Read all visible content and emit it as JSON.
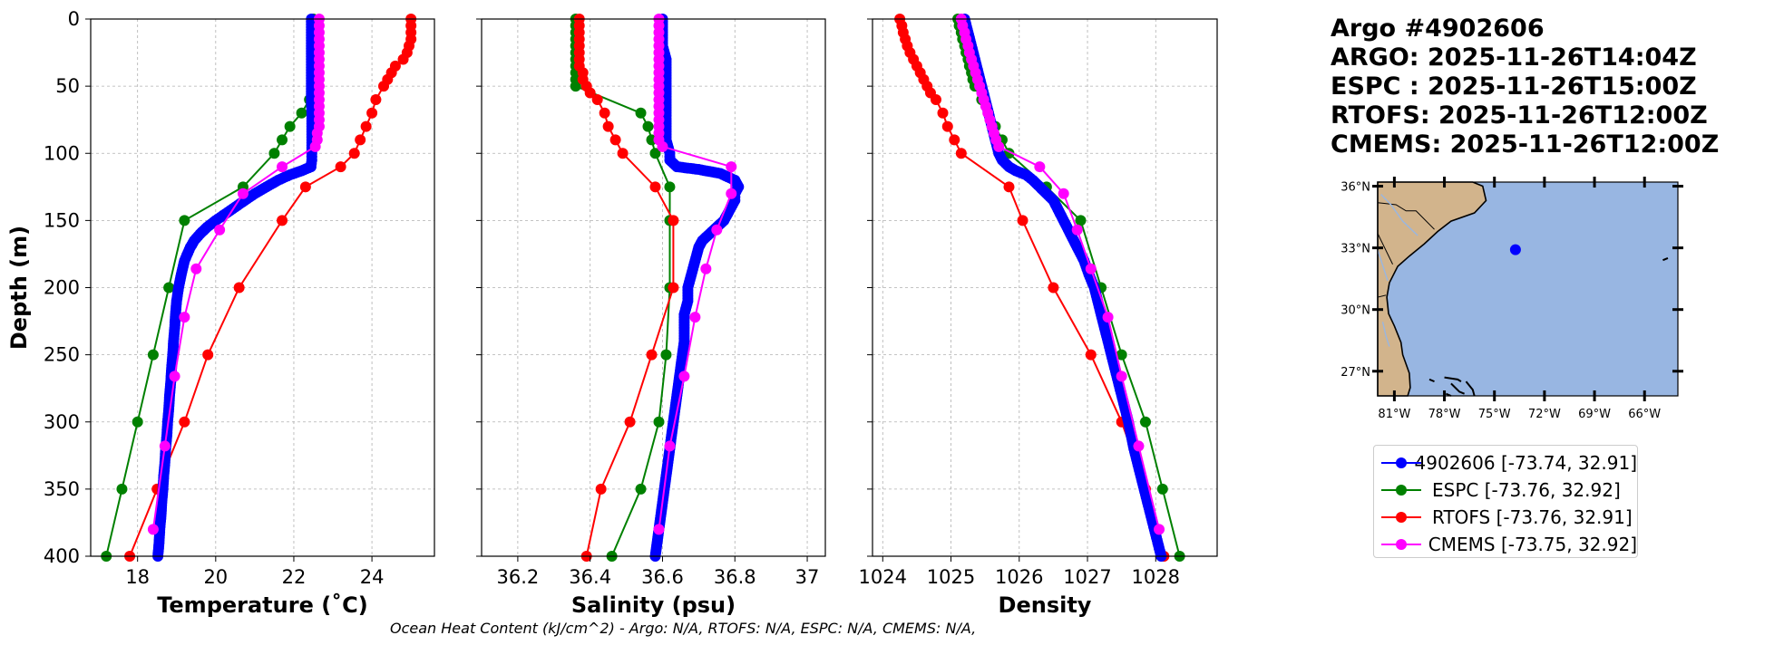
{
  "info": {
    "title": "Argo #4902606",
    "argo_time": "ARGO: 2025-11-26T14:04Z",
    "espc_time": "ESPC : 2025-11-26T15:00Z",
    "rtofs_time": "RTOFS: 2025-11-26T12:00Z",
    "cmems_time": "CMEMS: 2025-11-26T12:00Z"
  },
  "footer": "Ocean Heat Content (kJ/cm^2) - Argo: N/A,  RTOFS: N/A,  ESPC: N/A,  CMEMS: N/A,",
  "colors": {
    "argo": "#0000ff",
    "espc": "#008000",
    "rtofs": "#ff0000",
    "cmems": "#ff00ff",
    "ocean": "#98b6e2",
    "land": "#d2b48c",
    "grid": "#b0b0b0"
  },
  "legend": [
    {
      "label": "4902606 [-73.74, 32.91]",
      "color": "#0000ff"
    },
    {
      "label": "ESPC [-73.76, 32.92]",
      "color": "#008000"
    },
    {
      "label": "RTOFS [-73.76, 32.91]",
      "color": "#ff0000"
    },
    {
      "label": "CMEMS [-73.75, 32.92]",
      "color": "#ff00ff"
    }
  ],
  "chart_data": [
    {
      "type": "line",
      "id": "temperature",
      "title": "",
      "xlabel": "Temperature (˚C)",
      "ylabel": "Depth (m)",
      "xlim": [
        16.8,
        25.6
      ],
      "ylim": [
        400,
        0
      ],
      "xticks": [
        18,
        20,
        22,
        24
      ],
      "yticks": [
        0,
        50,
        100,
        150,
        200,
        250,
        300,
        350,
        400
      ],
      "grid": true,
      "series": [
        {
          "name": "4902606",
          "depth": [
            0,
            10,
            20,
            30,
            40,
            50,
            60,
            70,
            80,
            90,
            100,
            105,
            110,
            113,
            116,
            120,
            125,
            130,
            135,
            140,
            145,
            150,
            155,
            160,
            165,
            170,
            180,
            190,
            200,
            210,
            220,
            230,
            240,
            250,
            260,
            270,
            280,
            290,
            300,
            310,
            320,
            330,
            340,
            350,
            360,
            370,
            380,
            390,
            400
          ],
          "values": [
            22.45,
            22.45,
            22.45,
            22.45,
            22.45,
            22.45,
            22.45,
            22.46,
            22.46,
            22.46,
            22.46,
            22.46,
            22.44,
            22.2,
            21.9,
            21.6,
            21.3,
            21.0,
            20.75,
            20.5,
            20.25,
            20.0,
            19.78,
            19.6,
            19.45,
            19.35,
            19.2,
            19.12,
            19.05,
            19.0,
            18.97,
            18.95,
            18.92,
            18.9,
            18.87,
            18.85,
            18.82,
            18.8,
            18.77,
            18.75,
            18.72,
            18.7,
            18.67,
            18.65,
            18.62,
            18.6,
            18.57,
            18.55,
            18.52
          ]
        },
        {
          "name": "ESPC",
          "depth": [
            0,
            5,
            10,
            15,
            20,
            25,
            30,
            35,
            40,
            45,
            50,
            60,
            70,
            80,
            90,
            100,
            125,
            150,
            200,
            250,
            300,
            350,
            400
          ],
          "values": [
            22.5,
            22.5,
            22.5,
            22.5,
            22.5,
            22.5,
            22.5,
            22.5,
            22.5,
            22.5,
            22.5,
            22.4,
            22.2,
            21.9,
            21.7,
            21.5,
            20.7,
            19.2,
            18.8,
            18.4,
            18.0,
            17.6,
            17.2
          ]
        },
        {
          "name": "RTOFS",
          "depth": [
            0,
            5,
            10,
            15,
            20,
            25,
            30,
            35,
            40,
            45,
            50,
            60,
            70,
            80,
            90,
            100,
            110,
            125,
            150,
            200,
            250,
            300,
            350,
            400
          ],
          "values": [
            25.0,
            25.0,
            25.0,
            25.0,
            24.95,
            24.9,
            24.8,
            24.6,
            24.5,
            24.4,
            24.3,
            24.1,
            24.0,
            23.85,
            23.7,
            23.55,
            23.2,
            22.3,
            21.7,
            20.6,
            19.8,
            19.2,
            18.5,
            17.8
          ]
        },
        {
          "name": "CMEMS",
          "depth": [
            0,
            5,
            10,
            15,
            20,
            25,
            30,
            35,
            40,
            45,
            50,
            55,
            60,
            65,
            70,
            75,
            80,
            85,
            90,
            95,
            110,
            130,
            157,
            186,
            222,
            266,
            318,
            380
          ],
          "values": [
            22.65,
            22.65,
            22.65,
            22.65,
            22.65,
            22.65,
            22.65,
            22.65,
            22.65,
            22.65,
            22.65,
            22.65,
            22.65,
            22.65,
            22.65,
            22.65,
            22.65,
            22.6,
            22.6,
            22.55,
            21.7,
            20.7,
            20.1,
            19.5,
            19.2,
            18.95,
            18.7,
            18.4
          ]
        }
      ]
    },
    {
      "type": "line",
      "id": "salinity",
      "title": "",
      "xlabel": "Salinity (psu)",
      "ylabel": "",
      "xlim": [
        36.1,
        37.05
      ],
      "ylim": [
        400,
        0
      ],
      "xticks": [
        36.2,
        36.4,
        36.6,
        36.8,
        37.0
      ],
      "yticks": [
        0,
        50,
        100,
        150,
        200,
        250,
        300,
        350,
        400
      ],
      "grid": true,
      "series": [
        {
          "name": "4902606",
          "depth": [
            0,
            10,
            20,
            30,
            40,
            50,
            60,
            70,
            80,
            90,
            100,
            105,
            110,
            112,
            115,
            120,
            125,
            130,
            135,
            140,
            145,
            150,
            155,
            160,
            165,
            170,
            180,
            190,
            200,
            210,
            220,
            240,
            260,
            280,
            300,
            320,
            340,
            360,
            380,
            400
          ],
          "values": [
            36.6,
            36.6,
            36.6,
            36.61,
            36.61,
            36.61,
            36.61,
            36.61,
            36.61,
            36.61,
            36.62,
            36.62,
            36.64,
            36.7,
            36.76,
            36.8,
            36.81,
            36.8,
            36.8,
            36.79,
            36.78,
            36.77,
            36.75,
            36.73,
            36.71,
            36.7,
            36.69,
            36.68,
            36.67,
            36.67,
            36.66,
            36.66,
            36.65,
            36.64,
            36.63,
            36.62,
            36.61,
            36.6,
            36.59,
            36.58
          ]
        },
        {
          "name": "ESPC",
          "depth": [
            0,
            5,
            10,
            15,
            20,
            25,
            30,
            35,
            40,
            45,
            50,
            70,
            80,
            90,
            100,
            125,
            150,
            200,
            250,
            300,
            350,
            400
          ],
          "values": [
            36.36,
            36.36,
            36.36,
            36.36,
            36.36,
            36.36,
            36.36,
            36.36,
            36.36,
            36.36,
            36.36,
            36.54,
            36.56,
            36.57,
            36.58,
            36.62,
            36.62,
            36.62,
            36.61,
            36.59,
            36.54,
            36.46
          ]
        },
        {
          "name": "RTOFS",
          "depth": [
            0,
            5,
            10,
            15,
            20,
            25,
            30,
            35,
            40,
            45,
            50,
            55,
            60,
            70,
            80,
            90,
            100,
            125,
            150,
            200,
            250,
            300,
            350,
            400
          ],
          "values": [
            36.37,
            36.37,
            36.37,
            36.37,
            36.37,
            36.37,
            36.37,
            36.37,
            36.38,
            36.38,
            36.39,
            36.4,
            36.42,
            36.44,
            36.45,
            36.47,
            36.49,
            36.58,
            36.63,
            36.63,
            36.57,
            36.51,
            36.43,
            36.39
          ]
        },
        {
          "name": "CMEMS",
          "depth": [
            0,
            5,
            10,
            15,
            20,
            25,
            30,
            35,
            40,
            45,
            50,
            55,
            60,
            65,
            70,
            75,
            80,
            85,
            90,
            95,
            110,
            130,
            157,
            186,
            222,
            266,
            318,
            380
          ],
          "values": [
            36.59,
            36.59,
            36.59,
            36.59,
            36.59,
            36.59,
            36.59,
            36.59,
            36.59,
            36.59,
            36.59,
            36.59,
            36.59,
            36.59,
            36.59,
            36.59,
            36.59,
            36.59,
            36.59,
            36.6,
            36.79,
            36.79,
            36.75,
            36.72,
            36.69,
            36.66,
            36.62,
            36.59
          ]
        }
      ]
    },
    {
      "type": "line",
      "id": "density",
      "title": "",
      "xlabel": "Density",
      "ylabel": "",
      "xlim": [
        1023.85,
        1028.9
      ],
      "ylim": [
        400,
        0
      ],
      "xticks": [
        1024,
        1025,
        1026,
        1027,
        1028
      ],
      "yticks": [
        0,
        50,
        100,
        150,
        200,
        250,
        300,
        350,
        400
      ],
      "grid": true,
      "series": [
        {
          "name": "4902606",
          "depth": [
            0,
            10,
            20,
            30,
            40,
            50,
            60,
            70,
            80,
            90,
            100,
            105,
            110,
            113,
            116,
            120,
            125,
            130,
            135,
            140,
            145,
            150,
            160,
            170,
            180,
            190,
            200,
            220,
            240,
            260,
            280,
            300,
            320,
            340,
            360,
            380,
            400
          ],
          "values": [
            1025.2,
            1025.25,
            1025.3,
            1025.35,
            1025.4,
            1025.45,
            1025.5,
            1025.55,
            1025.6,
            1025.65,
            1025.7,
            1025.75,
            1025.85,
            1025.95,
            1026.1,
            1026.2,
            1026.3,
            1026.4,
            1026.5,
            1026.55,
            1026.6,
            1026.65,
            1026.75,
            1026.85,
            1026.95,
            1027.02,
            1027.1,
            1027.2,
            1027.3,
            1027.4,
            1027.5,
            1027.6,
            1027.68,
            1027.78,
            1027.88,
            1027.98,
            1028.08
          ]
        },
        {
          "name": "ESPC",
          "depth": [
            0,
            5,
            10,
            15,
            20,
            25,
            30,
            35,
            40,
            45,
            50,
            60,
            70,
            80,
            90,
            100,
            125,
            150,
            200,
            250,
            300,
            350,
            400
          ],
          "values": [
            1025.1,
            1025.12,
            1025.15,
            1025.17,
            1025.2,
            1025.22,
            1025.25,
            1025.27,
            1025.3,
            1025.32,
            1025.35,
            1025.45,
            1025.55,
            1025.65,
            1025.75,
            1025.85,
            1026.4,
            1026.9,
            1027.2,
            1027.5,
            1027.85,
            1028.1,
            1028.35
          ]
        },
        {
          "name": "RTOFS",
          "depth": [
            0,
            5,
            10,
            15,
            20,
            25,
            30,
            35,
            40,
            45,
            50,
            55,
            60,
            70,
            80,
            90,
            100,
            125,
            150,
            200,
            250,
            300,
            350,
            400
          ],
          "values": [
            1024.25,
            1024.28,
            1024.3,
            1024.33,
            1024.36,
            1024.4,
            1024.45,
            1024.5,
            1024.55,
            1024.6,
            1024.65,
            1024.7,
            1024.78,
            1024.88,
            1024.95,
            1025.05,
            1025.15,
            1025.85,
            1026.05,
            1026.5,
            1027.05,
            1027.5,
            1027.85,
            1028.12
          ]
        },
        {
          "name": "CMEMS",
          "depth": [
            0,
            5,
            10,
            15,
            20,
            25,
            30,
            35,
            40,
            45,
            50,
            55,
            60,
            65,
            70,
            75,
            80,
            85,
            90,
            95,
            110,
            130,
            157,
            186,
            222,
            266,
            318,
            380
          ],
          "values": [
            1025.15,
            1025.17,
            1025.2,
            1025.22,
            1025.25,
            1025.27,
            1025.3,
            1025.33,
            1025.36,
            1025.39,
            1025.42,
            1025.45,
            1025.48,
            1025.51,
            1025.54,
            1025.57,
            1025.6,
            1025.63,
            1025.66,
            1025.7,
            1026.3,
            1026.65,
            1026.85,
            1027.05,
            1027.3,
            1027.5,
            1027.75,
            1028.05
          ]
        }
      ]
    }
  ],
  "map": {
    "lat_ticks": [
      "36°N",
      "33°N",
      "30°N",
      "27°N"
    ],
    "lat_values": [
      36,
      33,
      30,
      27
    ],
    "lon_ticks": [
      "81°W",
      "78°W",
      "75°W",
      "72°W",
      "69°W",
      "66°W"
    ],
    "lon_values": [
      -81,
      -78,
      -75,
      -72,
      -69,
      -66
    ],
    "lon_range": [
      -82,
      -64
    ],
    "lat_range": [
      25.8,
      36.2
    ],
    "float_lon": -73.74,
    "float_lat": 32.91
  }
}
